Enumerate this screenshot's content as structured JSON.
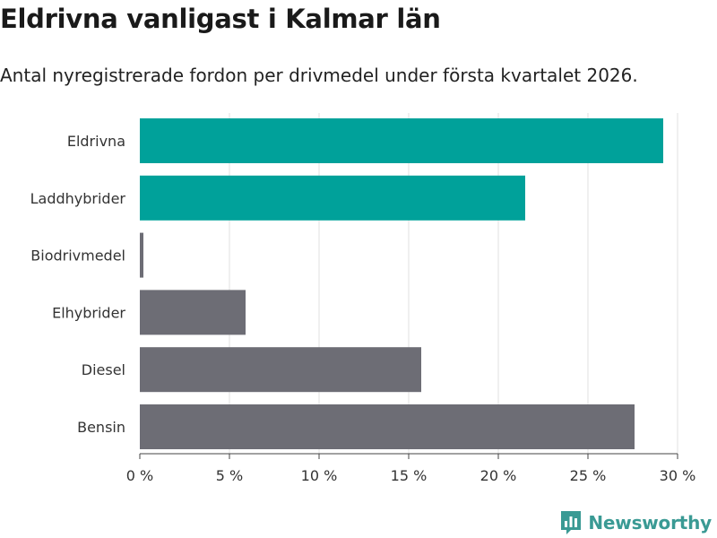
{
  "header": {
    "title": "Eldrivna vanligast i Kalmar län",
    "subtitle": "Antal nyregistrerade fordon per drivmedel under första kvartalet 2026."
  },
  "chart_data": {
    "type": "bar",
    "orientation": "horizontal",
    "categories": [
      "Eldrivna",
      "Laddhybrider",
      "Biodrivmedel",
      "Elhybrider",
      "Diesel",
      "Bensin"
    ],
    "values": [
      29.2,
      21.5,
      0.2,
      5.9,
      15.7,
      27.6
    ],
    "bar_colors": [
      "#00a19a",
      "#00a19a",
      "#6d6d75",
      "#6d6d75",
      "#6d6d75",
      "#6d6d75"
    ],
    "xlim": [
      0,
      30
    ],
    "x_ticks": [
      0,
      5,
      10,
      15,
      20,
      25,
      30
    ],
    "x_tick_labels": [
      "0 %",
      "5 %",
      "10 %",
      "15 %",
      "20 %",
      "25 %",
      "30 %"
    ],
    "xlabel": "",
    "ylabel": "",
    "grid": true
  },
  "branding": {
    "name": "Newsworthy",
    "logo_icon": "bar-chart-speech-bubble-icon",
    "color": "#3a9a94"
  }
}
